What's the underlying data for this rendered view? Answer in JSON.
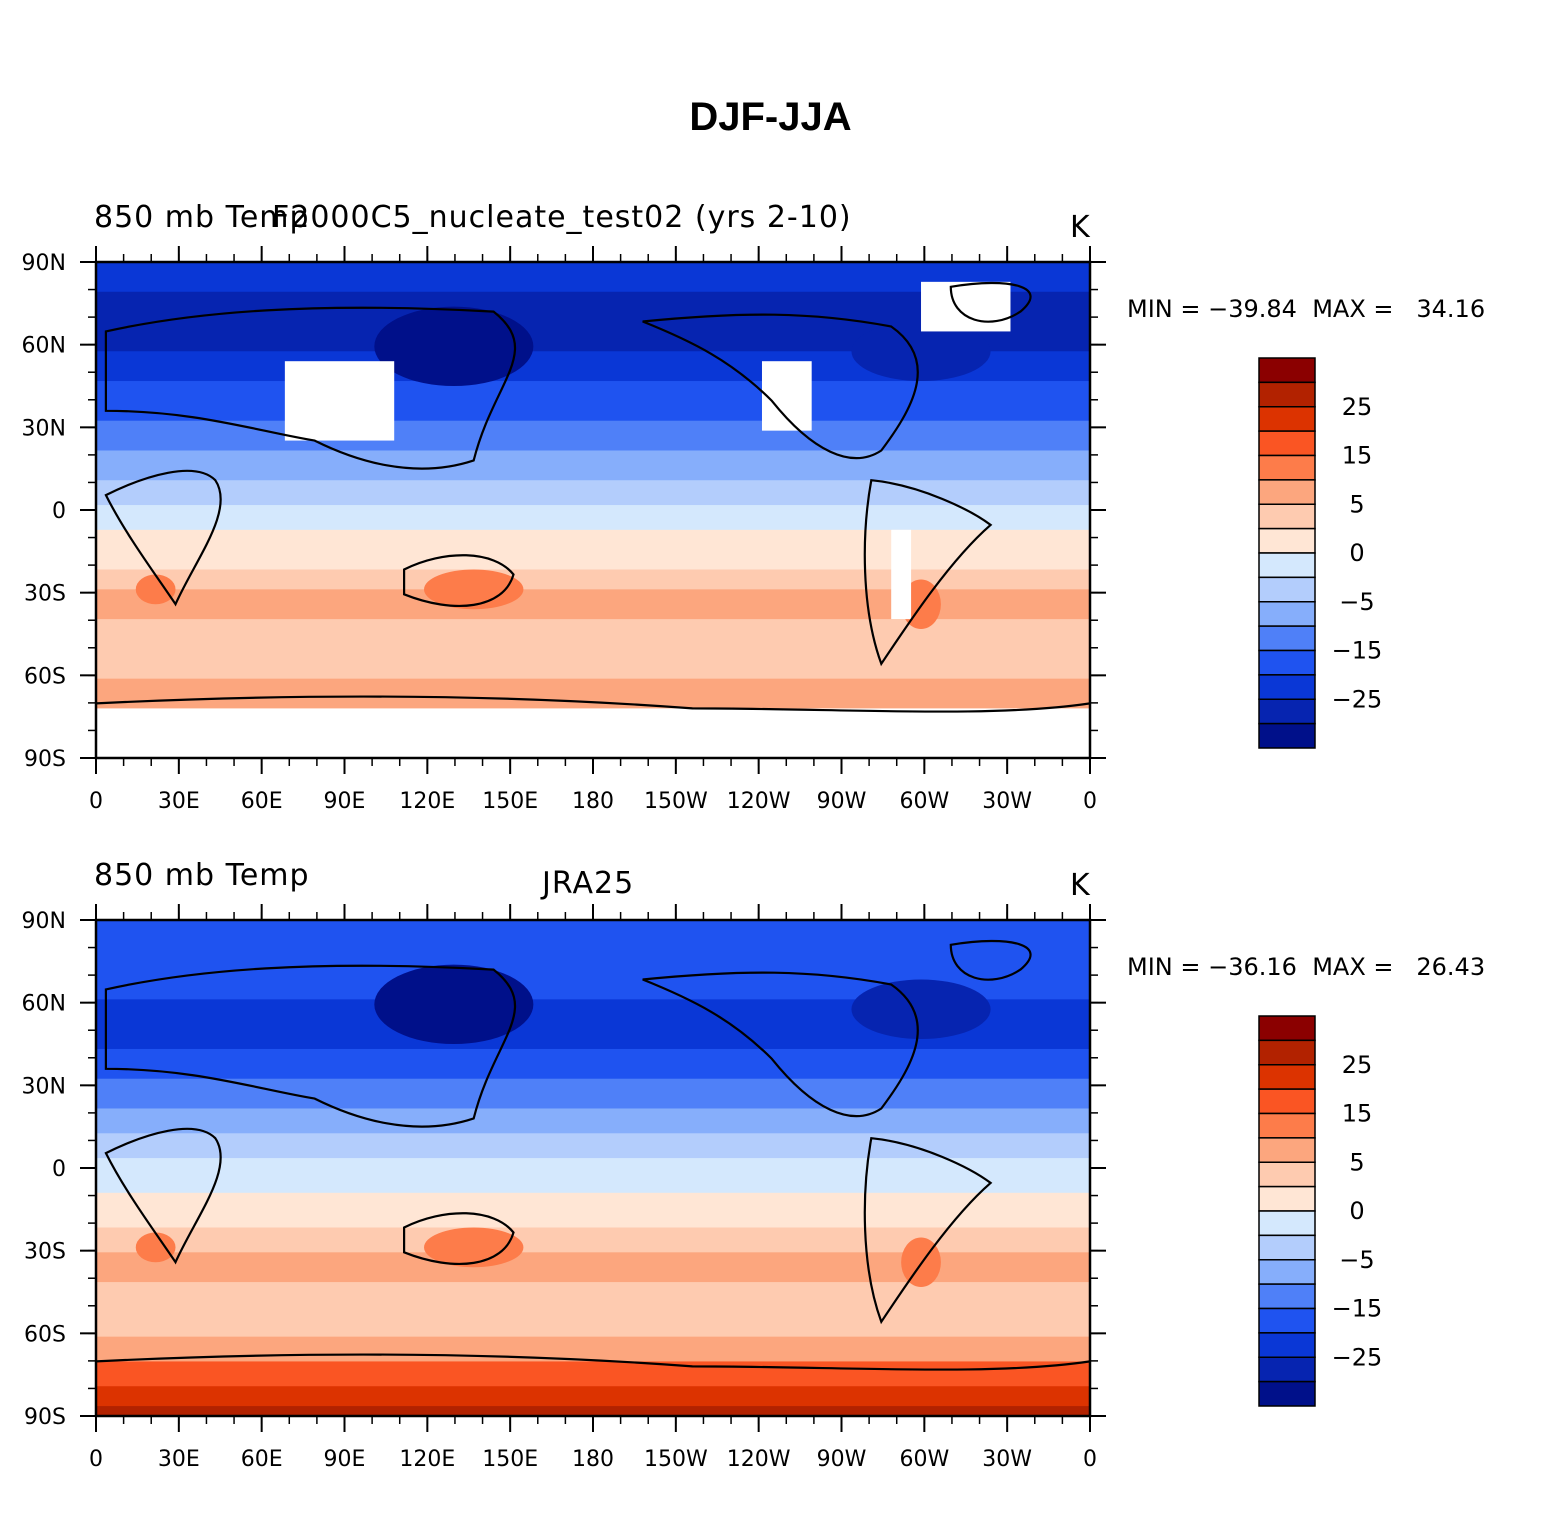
{
  "figure": {
    "title": "DJF-JJA"
  },
  "panels": [
    {
      "left_title": "850 mb Temp",
      "center_title": "F2000C5_nucleate_test02 (yrs 2-10)",
      "units": "K",
      "min_label": "MIN = −39.84",
      "max_label": "MAX =   34.16"
    },
    {
      "left_title": "850 mb Temp",
      "center_title": "JRA25",
      "units": "K",
      "min_label": "MIN = −36.16",
      "max_label": "MAX =   26.43"
    }
  ],
  "axes": {
    "lon_labels": [
      "0",
      "30E",
      "60E",
      "90E",
      "120E",
      "150E",
      "180",
      "150W",
      "120W",
      "90W",
      "60W",
      "30W",
      "0"
    ],
    "lat_labels": [
      "90N",
      "60N",
      "30N",
      "0",
      "30S",
      "60S",
      "90S"
    ]
  },
  "colorbar": {
    "colors": [
      "#8b0000",
      "#b22200",
      "#dc3300",
      "#fa5523",
      "#fd7c4a",
      "#fca67e",
      "#fecbb0",
      "#ffe6d5",
      "#d4e8fd",
      "#b3cdfc",
      "#86aefb",
      "#4f80f8",
      "#1f53f0",
      "#0a37d6",
      "#0624b0",
      "#00108a"
    ],
    "labels": [
      "25",
      "15",
      "5",
      "0",
      "−5",
      "−15",
      "−25"
    ]
  },
  "colors": {
    "land_outline": "#000000",
    "missing": "#ffffff"
  }
}
